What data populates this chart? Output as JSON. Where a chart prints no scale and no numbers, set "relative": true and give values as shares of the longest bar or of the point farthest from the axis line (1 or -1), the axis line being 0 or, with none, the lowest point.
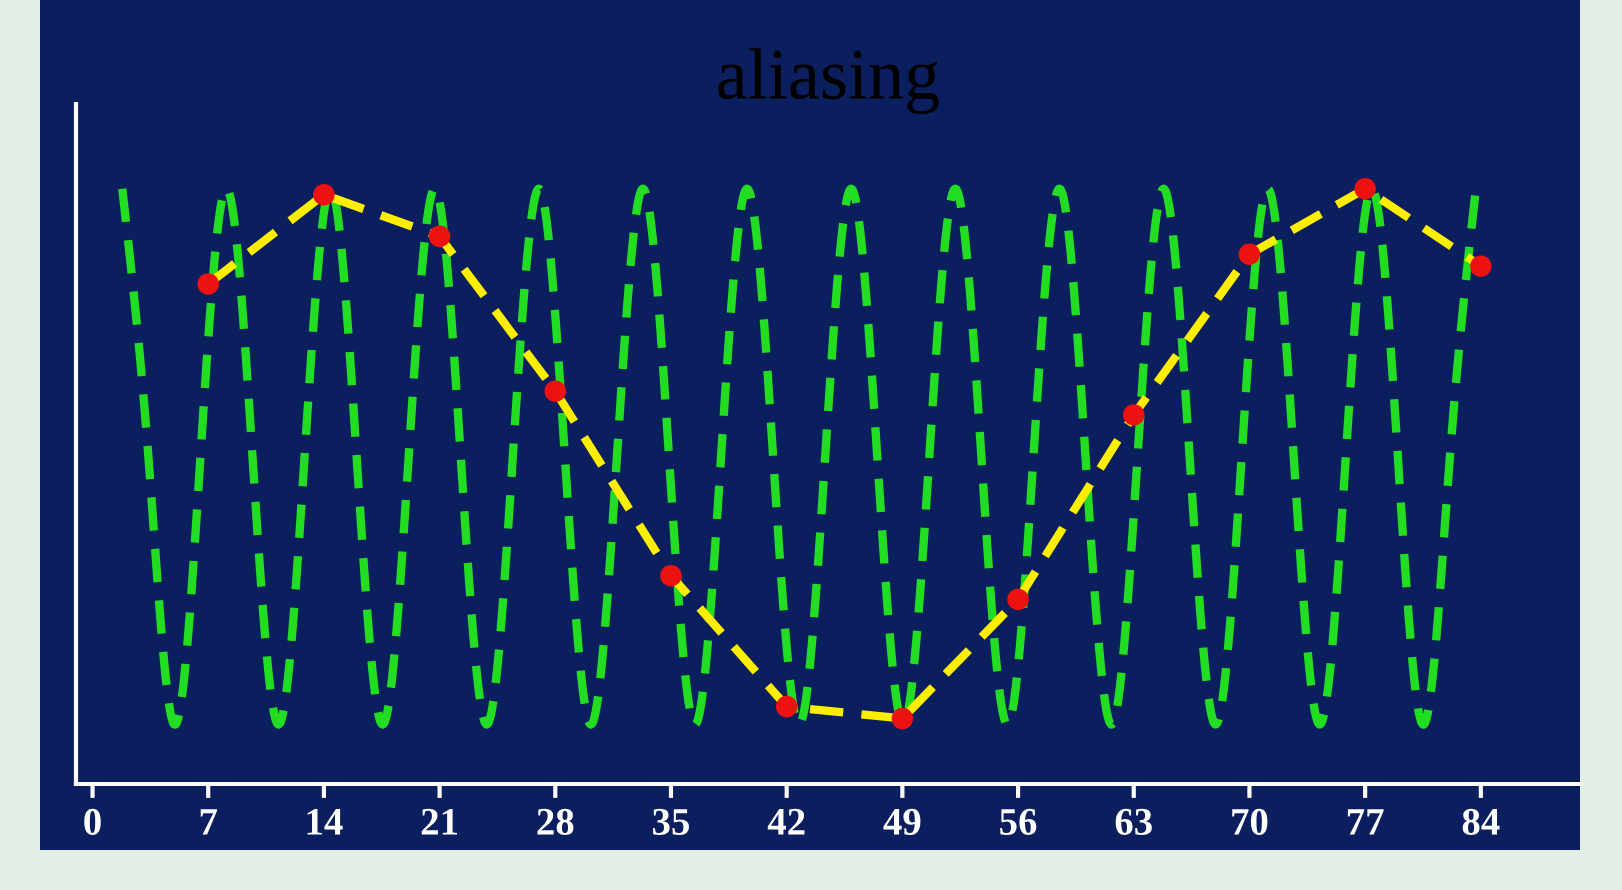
{
  "chart_data": {
    "type": "line",
    "title": "aliasing",
    "relative": true,
    "xlim": [
      -1,
      90
    ],
    "xticks": [
      0,
      7,
      14,
      21,
      28,
      35,
      42,
      49,
      56,
      63,
      70,
      77,
      84
    ],
    "grid": false,
    "legend": false,
    "line_style": "dashed",
    "series": [
      {
        "color": "#22dd22",
        "marker": "none",
        "x": [
          1.8,
          3.38,
          4.95,
          6.53,
          8.1,
          9.68,
          11.25,
          12.83,
          14.4,
          15.98,
          17.55,
          19.13,
          20.7,
          22.28,
          23.85,
          25.43,
          27.0,
          28.58,
          30.15,
          31.73,
          33.3,
          34.88,
          36.45,
          38.03,
          39.6,
          41.18,
          42.75,
          44.33,
          45.9,
          47.48,
          49.05,
          50.63,
          52.2,
          53.78,
          55.35,
          56.93,
          58.5,
          60.08,
          61.65,
          63.23,
          64.8,
          66.38,
          67.95,
          69.53,
          71.1,
          72.68,
          74.25,
          75.83,
          77.4,
          78.98,
          80.55,
          82.13,
          83.7
        ],
        "values": [
          1.0,
          0.55,
          0.1,
          0.55,
          1.0,
          0.55,
          0.1,
          0.55,
          1.0,
          0.55,
          0.1,
          0.55,
          1.0,
          0.55,
          0.1,
          0.55,
          1.0,
          0.55,
          0.1,
          0.55,
          1.0,
          0.55,
          0.1,
          0.55,
          1.0,
          0.55,
          0.1,
          0.55,
          1.0,
          0.55,
          0.1,
          0.55,
          1.0,
          0.55,
          0.1,
          0.55,
          1.0,
          0.55,
          0.1,
          0.55,
          1.0,
          0.55,
          0.1,
          0.55,
          1.0,
          0.55,
          0.1,
          0.55,
          1.0,
          0.55,
          0.1,
          0.55,
          1.0
        ]
      },
      {
        "color": "#ffee00",
        "marker": "none",
        "x": [
          7,
          14,
          21,
          28,
          35,
          42,
          49,
          56,
          63,
          70,
          77,
          84
        ],
        "values": [
          0.84,
          0.99,
          0.92,
          0.66,
          0.35,
          0.13,
          0.11,
          0.31,
          0.62,
          0.89,
          1.0,
          0.87
        ]
      },
      {
        "type": "scatter",
        "color": "#ee1111",
        "marker": "circle",
        "x": [
          7,
          14,
          21,
          28,
          35,
          42,
          49,
          56,
          63,
          70,
          77,
          84
        ],
        "values": [
          0.84,
          0.99,
          0.92,
          0.66,
          0.35,
          0.13,
          0.11,
          0.31,
          0.62,
          0.89,
          1.0,
          0.87
        ]
      }
    ]
  }
}
